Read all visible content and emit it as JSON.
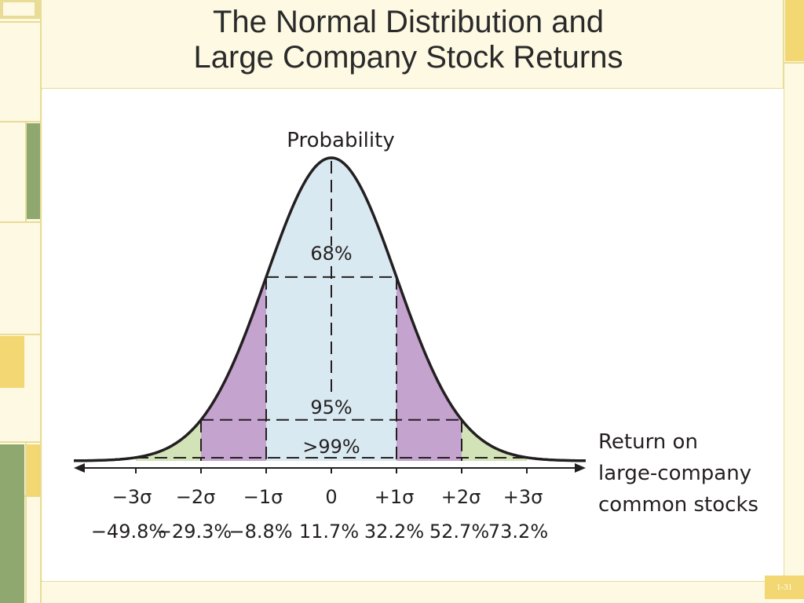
{
  "slide": {
    "title_line1": "The Normal Distribution and",
    "title_line2": "Large Company Stock Returns",
    "slide_number": "1-31"
  },
  "colors": {
    "background": "#fdf9e3",
    "border": "#e8dc97",
    "accent_yellow": "#f2d772",
    "accent_green": "#8fa870",
    "band_68": "#d9e9f1",
    "band_95": "#c4a3cf",
    "band_99": "#d3e3b8",
    "curve": "#231f20"
  },
  "chart_data": {
    "type": "area",
    "distribution": "normal",
    "mean": 11.7,
    "std_dev": 20.5,
    "ylabel": "Probability",
    "xlabel": "Return on large-company common stocks",
    "xlabel_lines": [
      "Return on",
      "large-company",
      "common stocks"
    ],
    "sigma_labels": [
      "−3σ",
      "−2σ",
      "−1σ",
      "0",
      "+1σ",
      "+2σ",
      "+3σ"
    ],
    "return_labels": [
      "−49.8%",
      "−29.3%",
      "−8.8%",
      "11.7%",
      "32.2%",
      "52.7%",
      "73.2%"
    ],
    "return_values": [
      -49.8,
      -29.3,
      -8.8,
      11.7,
      32.2,
      52.7,
      73.2
    ],
    "bands": [
      {
        "label": "68%",
        "range_sigma": [
          -1,
          1
        ],
        "color": "#d9e9f1"
      },
      {
        "label": "95%",
        "range_sigma": [
          -2,
          2
        ],
        "color": "#c4a3cf"
      },
      {
        "label": ">99%",
        "range_sigma": [
          -3,
          3
        ],
        "color": "#d3e3b8"
      }
    ]
  }
}
